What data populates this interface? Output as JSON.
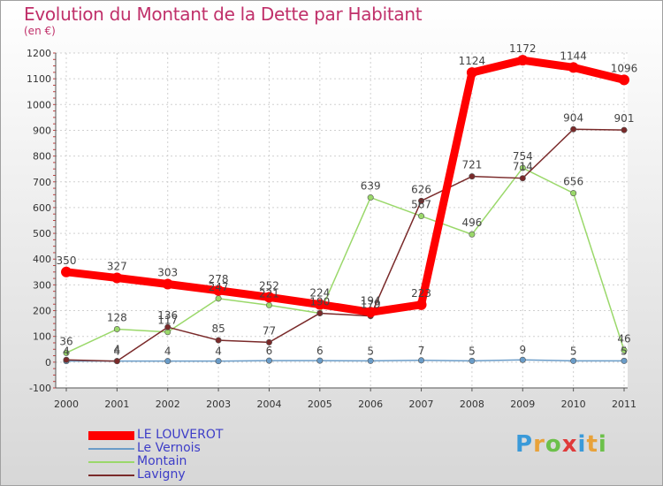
{
  "header": {
    "title": "Evolution du Montant de la Dette par Habitant",
    "subtitle": "(en €)"
  },
  "logo": {
    "text": "Proxiti",
    "letters": [
      "P",
      "r",
      "o",
      "x",
      "i",
      "t",
      "i"
    ],
    "colors": [
      "#3a9ad9",
      "#e8a23a",
      "#6cc04a",
      "#e03a3a",
      "#3a9ad9",
      "#e8a23a",
      "#6cc04a"
    ]
  },
  "chart_data": {
    "type": "line",
    "title": "Evolution du Montant de la Dette par Habitant",
    "subtitle": "(en €)",
    "x": [
      "2000",
      "2001",
      "2002",
      "2003",
      "2004",
      "2005",
      "2006",
      "2007",
      "2008",
      "2009",
      "2010",
      "2011"
    ],
    "ylim": [
      -100,
      1200
    ],
    "yticks": [
      -100,
      0,
      100,
      200,
      300,
      400,
      500,
      600,
      700,
      800,
      900,
      1000,
      1100,
      1200
    ],
    "grid": true,
    "legend_position": "bottom-left",
    "series": [
      {
        "name": "LE LOUVEROT",
        "color": "#ff0000",
        "values": [
          350,
          327,
          303,
          278,
          252,
          224,
          194,
          223,
          1124,
          1172,
          1144,
          1096
        ],
        "labels": [
          "350",
          "327",
          "303",
          "278",
          "252",
          "224",
          "194",
          "223",
          "1124",
          "1172",
          "1144",
          "1096"
        ]
      },
      {
        "name": "Le Vernois",
        "color": "#6a9cc8",
        "values": [
          4,
          4,
          4,
          4,
          6,
          6,
          5,
          7,
          5,
          9,
          5,
          5
        ],
        "labels": [
          "4",
          "4",
          "4",
          "4",
          "6",
          "6",
          "5",
          "7",
          "5",
          "9",
          "5",
          "5"
        ]
      },
      {
        "name": "Montain",
        "color": "#9ad86a",
        "values": [
          36,
          128,
          117,
          247,
          221,
          190,
          639,
          567,
          496,
          754,
          656,
          46
        ],
        "labels": [
          "36",
          "128",
          "117",
          "247",
          "221",
          "190",
          "639",
          "567",
          "496",
          "754",
          "656",
          "46"
        ]
      },
      {
        "name": "Lavigny",
        "color": "#7a2a2a",
        "values": [
          9,
          4,
          136,
          85,
          77,
          190,
          179,
          626,
          721,
          714,
          904,
          901
        ],
        "labels": [
          "",
          "4",
          "136",
          "85",
          "77",
          "",
          "179",
          "626",
          "721",
          "714",
          "904",
          "901"
        ]
      }
    ]
  }
}
